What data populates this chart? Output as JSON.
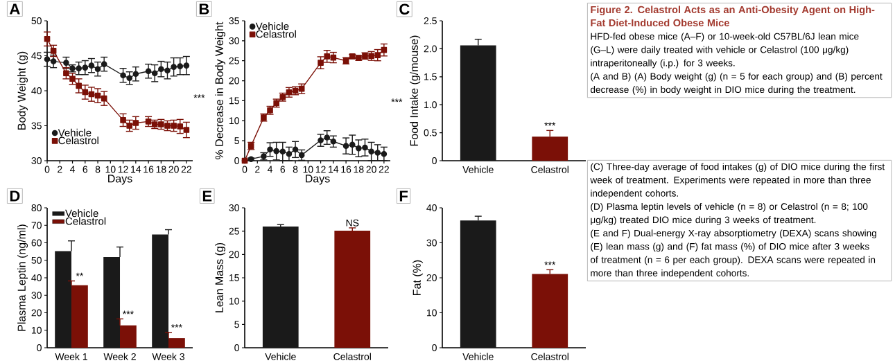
{
  "chart_data": [
    {
      "type": "line",
      "title": "A",
      "xlabel": "Days",
      "ylabel": "Body Weight (g)",
      "xlim": [
        0,
        23
      ],
      "xticks": [
        0,
        2,
        4,
        6,
        8,
        10,
        12,
        14,
        16,
        18,
        20,
        22
      ],
      "ylim": [
        30,
        50
      ],
      "yticks": [
        30,
        35,
        40,
        45,
        50
      ],
      "legend": "bottom left",
      "annotations": [
        "***"
      ],
      "x": [
        0,
        1,
        3,
        4,
        5,
        6,
        7,
        8,
        9,
        12,
        13,
        14,
        16,
        17,
        18,
        19,
        20,
        21,
        22
      ],
      "series": [
        {
          "name": "Vehicle",
          "color": "#1a1a1a",
          "marker": "circle",
          "values": [
            44.5,
            44.2,
            44.0,
            43.2,
            43.2,
            43.3,
            43.6,
            43.1,
            43.8,
            42.2,
            41.8,
            42.4,
            42.8,
            42.5,
            43.1,
            42.9,
            43.4,
            43.5,
            43.6
          ],
          "errors": [
            1.0,
            0.9,
            0.8,
            0.5,
            0.9,
            1.0,
            1.0,
            1.0,
            1.0,
            1.0,
            0.9,
            1.0,
            1.0,
            1.2,
            1.1,
            1.2,
            1.3,
            1.2,
            1.3
          ]
        },
        {
          "name": "Celastrol",
          "color": "#7b1007",
          "marker": "square",
          "values": [
            47.4,
            45.7,
            42.5,
            41.7,
            40.7,
            39.8,
            39.5,
            39.3,
            38.9,
            35.8,
            35.0,
            35.4,
            35.6,
            35.2,
            35.2,
            35.0,
            35.0,
            34.9,
            34.4
          ],
          "errors": [
            1.0,
            0.8,
            0.8,
            0.8,
            1.0,
            1.0,
            1.0,
            1.0,
            1.0,
            0.9,
            0.8,
            0.9,
            0.7,
            0.6,
            0.7,
            0.7,
            0.8,
            1.0,
            1.1
          ]
        }
      ]
    },
    {
      "type": "line",
      "title": "B",
      "xlabel": "Days",
      "ylabel": "% Decrease in Body Weight",
      "xlim": [
        0,
        23
      ],
      "xticks": [
        0,
        2,
        4,
        6,
        8,
        10,
        12,
        14,
        16,
        18,
        20,
        22
      ],
      "ylim": [
        0,
        35
      ],
      "yticks": [
        0,
        5,
        10,
        15,
        20,
        25,
        30,
        35
      ],
      "legend": "top left",
      "annotations": [
        "***"
      ],
      "x": [
        0,
        1,
        3,
        4,
        5,
        6,
        7,
        8,
        9,
        12,
        13,
        14,
        16,
        17,
        18,
        19,
        20,
        21,
        22
      ],
      "series": [
        {
          "name": "Vehicle",
          "color": "#1a1a1a",
          "marker": "circle",
          "values": [
            0,
            0.4,
            1.1,
            2.8,
            2.4,
            2.3,
            1.7,
            2.8,
            1.4,
            5.1,
            5.8,
            4.8,
            3.7,
            4.0,
            3.1,
            3.3,
            2.3,
            2.0,
            1.7
          ],
          "errors": [
            null,
            0.3,
            0.9,
            1.7,
            2.2,
            2.3,
            1.7,
            2.0,
            1.3,
            1.5,
            1.7,
            1.4,
            2.0,
            2.4,
            2.1,
            2.1,
            2.3,
            2.0,
            1.7
          ]
        },
        {
          "name": "Celastrol",
          "color": "#7b1007",
          "marker": "square",
          "values": [
            0,
            3.7,
            10.8,
            12.6,
            14.4,
            15.9,
            17.1,
            17.5,
            18.0,
            24.5,
            26.1,
            25.8,
            25.0,
            26.1,
            25.7,
            26.2,
            26.2,
            26.4,
            27.7
          ],
          "errors": [
            null,
            0.9,
            0.9,
            1.0,
            1.0,
            1.0,
            1.2,
            1.0,
            1.2,
            1.5,
            1.5,
            1.3,
            0.8,
            0.5,
            0.6,
            0.8,
            1.1,
            1.4,
            1.5
          ]
        }
      ]
    },
    {
      "type": "bar",
      "title": "C",
      "ylabel": "Food Intake (g/mouse)",
      "categories": [
        "Vehicle",
        "Celastrol"
      ],
      "values": [
        2.06,
        0.43
      ],
      "errors": [
        0.11,
        0.11
      ],
      "colors": [
        "#1a1a1a",
        "#7b1007"
      ],
      "ylim": [
        0,
        2.5
      ],
      "yticks": [
        0,
        0.5,
        {
          "value": 1,
          "label": "1.0"
        },
        1.5,
        {
          "value": 2,
          "label": "2.0"
        },
        2.5
      ],
      "annotations": [
        {
          "text": "***",
          "x": "Celastrol",
          "y": 0.54
        }
      ]
    },
    {
      "type": "bar",
      "title": "D",
      "ylabel": "Plasma Leptin (ng/ml)",
      "categories": [
        "Week 1",
        "Week 2",
        "Week 3"
      ],
      "ylim": [
        0,
        80
      ],
      "yticks": [
        0,
        10,
        20,
        30,
        40,
        50,
        60,
        70,
        80
      ],
      "legend": "top left",
      "series": [
        {
          "name": "Vehicle",
          "color": "#1a1a1a",
          "values": [
            55.2,
            51.9,
            64.8
          ],
          "errors": [
            5.9,
            5.7,
            2.7
          ]
        },
        {
          "name": "Celastrol",
          "color": "#7b1007",
          "values": [
            35.7,
            12.8,
            5.5
          ],
          "errors": [
            2.5,
            3.7,
            3.3
          ]
        }
      ],
      "annotations": [
        {
          "text": "**",
          "x": "Week 1",
          "y": 38.2
        },
        {
          "text": "***",
          "x": "Week 2",
          "y": 16.5
        },
        {
          "text": "***",
          "x": "Week 3",
          "y": 8.8
        }
      ]
    },
    {
      "type": "bar",
      "title": "E",
      "ylabel": "Lean Mass (g)",
      "categories": [
        "Vehicle",
        "Celastrol"
      ],
      "values": [
        26.0,
        25.1
      ],
      "errors": [
        0.4,
        0.6
      ],
      "colors": [
        "#1a1a1a",
        "#7b1007"
      ],
      "ylim": [
        0,
        30
      ],
      "yticks": [
        0,
        5,
        10,
        15,
        20,
        25,
        30
      ],
      "annotations": [
        {
          "text": "NS",
          "x": "Celastrol",
          "y": 25.7
        }
      ]
    },
    {
      "type": "bar",
      "title": "F",
      "ylabel": "Fat (%)",
      "categories": [
        "Vehicle",
        "Celastrol"
      ],
      "values": [
        36.4,
        21.1
      ],
      "errors": [
        1.2,
        1.2
      ],
      "colors": [
        "#1a1a1a",
        "#7b1007"
      ],
      "ylim": [
        0,
        40
      ],
      "yticks": [
        0,
        10,
        20,
        30,
        40
      ],
      "annotations": [
        {
          "text": "***",
          "x": "Celastrol",
          "y": 22.3
        }
      ]
    },
    {
      "type": "other",
      "title": "Figure 2. Celastrol Acts as an Anti-Obesity Agent on High-Fat Diet-Induced Obese Mice",
      "annotations": [
        "HFD-fed obese mice (A–F) or 10-week-old C57BL/6J lean mice (G–L) were daily treated with vehicle or Celastrol (100 μg/kg) intraperitoneally (i.p.) for 3 weeks.",
        "(A and B) (A) Body weight (g) (n = 5 for each group) and (B) percent decrease (%) in body weight in DIO mice during the treatment."
      ]
    },
    {
      "type": "other",
      "annotations": [
        "(C) Three-day average of food intakes (g) of DIO mice during the first week of treatment. Experiments were repeated in more than three independent cohorts.",
        "(D) Plasma leptin levels of vehicle (n = 8) or Celastrol (n = 8; 100 μg/kg) treated DIO mice during 3 weeks of treatment.",
        "(E and F) Dual-energy X-ray absorptiometry (DEXA) scans showing (E) lean mass (g) and (F) fat mass (%) of DIO mice after 3 weeks of treatment (n = 6 per each group). DEXA scans were repeated in more than three independent cohorts."
      ]
    }
  ]
}
